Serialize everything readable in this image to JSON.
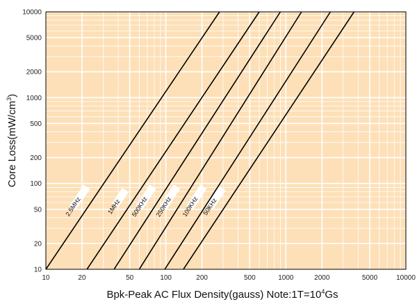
{
  "chart_data": {
    "type": "line",
    "scale": "log-log",
    "xlabel": "Bpk-Peak AC Flux Density(gauss) Note:1T=10",
    "xlabel_exp": "4",
    "xlabel_tail": "Gs",
    "ylabel": "Core Loss(mW/cm",
    "ylabel_exp": "3",
    "ylabel_tail": ")",
    "xlim": [
      10,
      10000
    ],
    "ylim": [
      10,
      10000
    ],
    "x_ticks": [
      10,
      20,
      50,
      100,
      200,
      500,
      1000,
      2000,
      5000,
      10000
    ],
    "x_tick_labels": [
      "10",
      "20",
      "50",
      "100",
      "200",
      "500",
      "1000",
      "2000",
      "5000",
      "10000"
    ],
    "y_ticks": [
      10,
      20,
      50,
      100,
      200,
      500,
      1000,
      2000,
      5000,
      10000
    ],
    "y_tick_labels": [
      "10",
      "20",
      "50",
      "100",
      "200",
      "500",
      "1000",
      "2000",
      "5000",
      "10000"
    ],
    "grid": true,
    "colors": {
      "background": "#fde0b8",
      "grid": "#ffffff",
      "line": "#000000"
    },
    "series": [
      {
        "name": "2.5MHz",
        "x": [
          10,
          280
        ],
        "y": [
          10,
          10000
        ]
      },
      {
        "name": "1MHz",
        "x": [
          22,
          600
        ],
        "y": [
          10,
          10000
        ]
      },
      {
        "name": "500KHz",
        "x": [
          37,
          900
        ],
        "y": [
          10,
          10000
        ]
      },
      {
        "name": "250KHz",
        "x": [
          60,
          1350
        ],
        "y": [
          10,
          10000
        ]
      },
      {
        "name": "100KHz",
        "x": [
          98,
          2350
        ],
        "y": [
          10,
          10000
        ]
      },
      {
        "name": "50KHz",
        "x": [
          140,
          3700
        ],
        "y": [
          10,
          10000
        ]
      }
    ]
  }
}
